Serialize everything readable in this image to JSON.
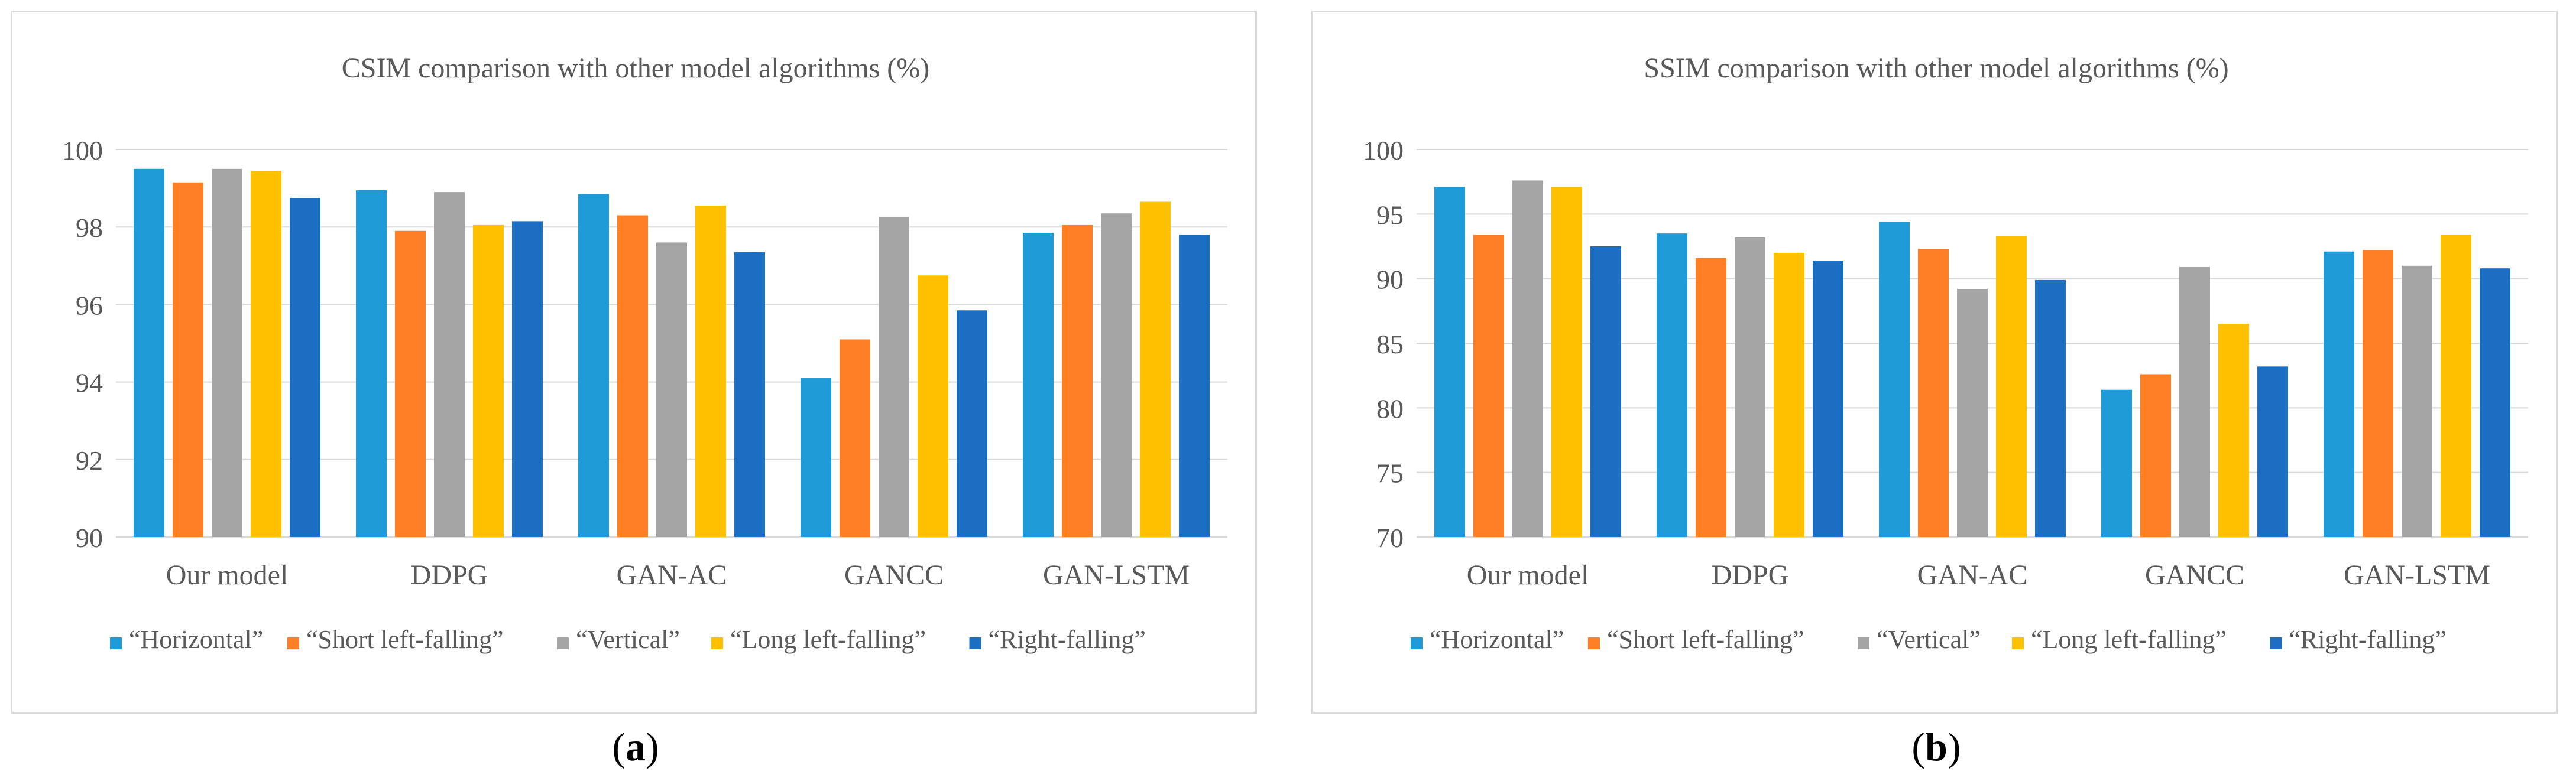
{
  "chart_data": [
    {
      "type": "bar",
      "panel_label": "a",
      "title": "CSIM comparison with other model algorithms (%)",
      "xlabel": "",
      "ylabel": "",
      "categories": [
        "Our model",
        "DDPG",
        "GAN-AC",
        "GANCC",
        "GAN-LSTM"
      ],
      "ylim": [
        90,
        100
      ],
      "yticks": [
        90,
        92,
        94,
        96,
        98,
        100
      ],
      "grid": true,
      "legend_position": "bottom",
      "series": [
        {
          "name": "“Horizontal”",
          "color": "#1f9bd7",
          "values": [
            99.5,
            98.95,
            98.85,
            94.1,
            97.85
          ]
        },
        {
          "name": "“Short left-falling”",
          "color": "#ff7f27",
          "values": [
            99.15,
            97.9,
            98.3,
            95.1,
            98.05
          ]
        },
        {
          "name": "“Vertical”",
          "color": "#a5a5a5",
          "values": [
            99.5,
            98.9,
            97.6,
            98.25,
            98.35
          ]
        },
        {
          "name": "“Long left-falling”",
          "color": "#ffc000",
          "values": [
            99.45,
            98.05,
            98.55,
            96.75,
            98.65
          ]
        },
        {
          "name": "“Right-falling”",
          "color": "#1b6ec2",
          "values": [
            98.75,
            98.15,
            97.35,
            95.85,
            97.8
          ]
        }
      ]
    },
    {
      "type": "bar",
      "panel_label": "b",
      "title": "SSIM comparison with other model algorithms (%)",
      "xlabel": "",
      "ylabel": "",
      "categories": [
        "Our model",
        "DDPG",
        "GAN-AC",
        "GANCC",
        "GAN-LSTM"
      ],
      "ylim": [
        70,
        100
      ],
      "yticks": [
        70,
        75,
        80,
        85,
        90,
        95,
        100
      ],
      "grid": true,
      "legend_position": "bottom",
      "series": [
        {
          "name": "“Horizontal”",
          "color": "#1f9bd7",
          "values": [
            97.1,
            93.5,
            94.4,
            81.4,
            92.1
          ]
        },
        {
          "name": "“Short left-falling”",
          "color": "#ff7f27",
          "values": [
            93.4,
            91.6,
            92.3,
            82.6,
            92.2
          ]
        },
        {
          "name": "“Vertical”",
          "color": "#a5a5a5",
          "values": [
            97.6,
            93.2,
            89.2,
            90.9,
            91.0
          ]
        },
        {
          "name": "“Long left-falling”",
          "color": "#ffc000",
          "values": [
            97.1,
            92.0,
            93.3,
            86.5,
            93.4
          ]
        },
        {
          "name": "“Right-falling”",
          "color": "#1b6ec2",
          "values": [
            92.5,
            91.4,
            89.9,
            83.2,
            90.8
          ]
        }
      ]
    }
  ]
}
